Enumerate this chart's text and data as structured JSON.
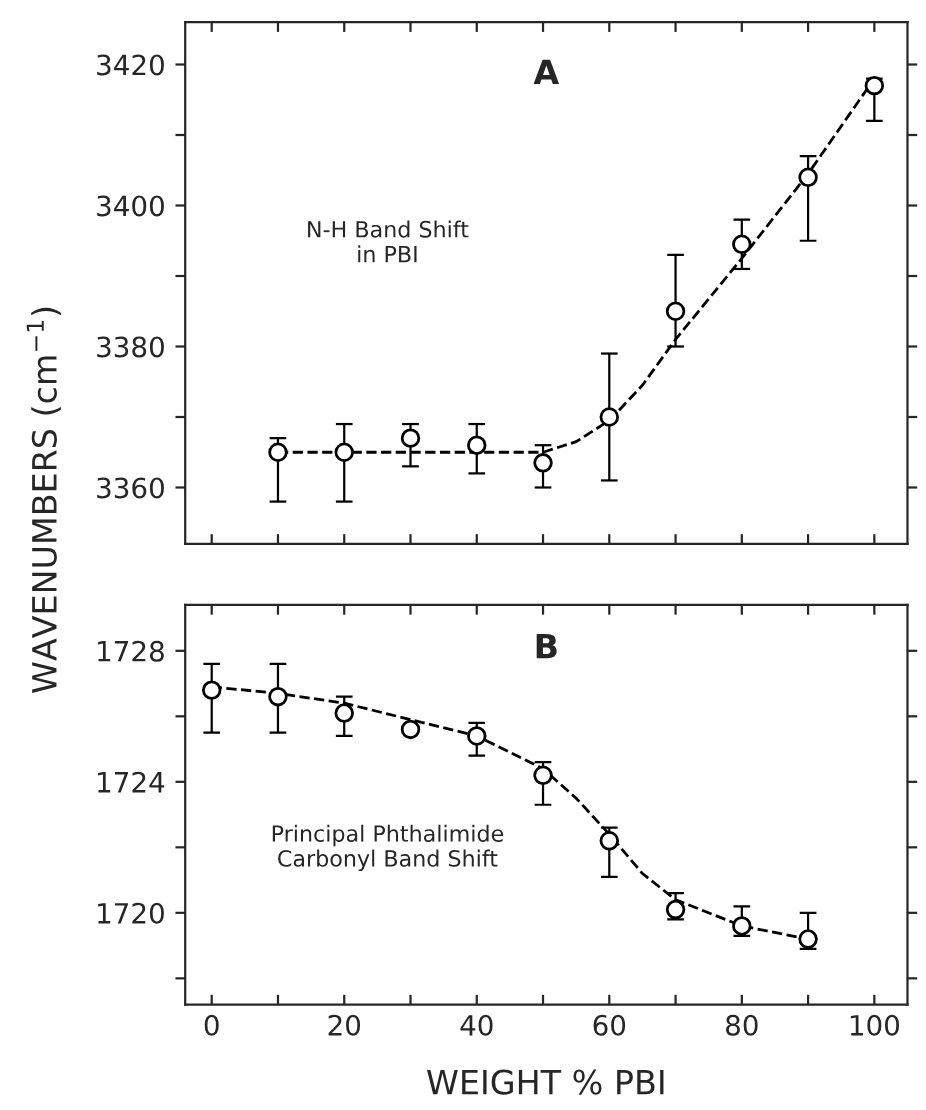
{
  "chart_data": [
    {
      "type": "scatter",
      "title": "A",
      "ylabel": "WAVENUMBERS (cm$^{−1}$)",
      "annotations": [
        "N-H Band Shift\nin PBI"
      ],
      "xlim": [
        -4,
        105
      ],
      "ylim": [
        3352,
        3426
      ],
      "xticks": [
        0,
        10,
        20,
        30,
        40,
        50,
        60,
        70,
        80,
        90,
        100
      ],
      "yticks": [
        3360,
        {
          "value": 3370,
          "label": null
        },
        3380,
        {
          "value": 3390,
          "label": null
        },
        3400,
        {
          "value": 3410,
          "label": null
        },
        3420
      ],
      "tick_labels": "y",
      "grid": false,
      "legend": false,
      "series": [
        {
          "color": "#000000",
          "marker": "circle",
          "x": [
            10,
            20,
            30,
            40,
            50,
            60,
            70,
            80,
            90,
            100
          ],
          "values": [
            3365,
            3365,
            3367,
            3366,
            3363.5,
            3370,
            3385,
            3394.5,
            3404,
            3417
          ],
          "errors": [
            [
              3358,
              3367
            ],
            [
              3358,
              3369
            ],
            [
              3363,
              3369
            ],
            [
              3362,
              3369
            ],
            [
              3360,
              3366
            ],
            [
              3361,
              3379
            ],
            [
              3380,
              3393
            ],
            [
              3391,
              3398
            ],
            [
              3395,
              3407
            ],
            [
              3412,
              3418
            ]
          ]
        },
        {
          "type": "line",
          "color": "#000000",
          "line_style": "dashed",
          "x": [
            10,
            20,
            30,
            40,
            50,
            55,
            60,
            65,
            70,
            80,
            90,
            100
          ],
          "values": [
            3365,
            3365,
            3365,
            3365,
            3365,
            3366.5,
            3369.5,
            3374.5,
            3381,
            3392.5,
            3404.5,
            3418
          ]
        }
      ]
    },
    {
      "type": "scatter",
      "title": "B",
      "xlabel": "WEIGHT % PBI",
      "annotations": [
        "Principal Phthalimide\nCarbonyl Band Shift"
      ],
      "xlim": [
        -4,
        105
      ],
      "ylim": [
        1717.2,
        1729.4
      ],
      "xticks": [
        0,
        {
          "value": 10,
          "label": null
        },
        20,
        {
          "value": 30,
          "label": null
        },
        40,
        {
          "value": 50,
          "label": null
        },
        60,
        {
          "value": 70,
          "label": null
        },
        80,
        {
          "value": 90,
          "label": null
        },
        100
      ],
      "yticks": [
        {
          "value": 1718,
          "label": null
        },
        1720,
        {
          "value": 1722,
          "label": null
        },
        1724,
        {
          "value": 1726,
          "label": null
        },
        1728
      ],
      "grid": false,
      "legend": false,
      "series": [
        {
          "color": "#000000",
          "marker": "circle",
          "x": [
            0,
            10,
            20,
            30,
            40,
            50,
            60,
            70,
            80,
            90
          ],
          "values": [
            1726.8,
            1726.6,
            1726.1,
            1725.6,
            1725.4,
            1724.2,
            1722.2,
            1720.1,
            1719.6,
            1719.2
          ],
          "errors": [
            [
              1725.5,
              1727.6
            ],
            [
              1725.5,
              1727.6
            ],
            [
              1725.4,
              1726.6
            ],
            null,
            [
              1724.8,
              1725.8
            ],
            [
              1723.3,
              1724.6
            ],
            [
              1721.1,
              1722.6
            ],
            [
              1719.8,
              1720.6
            ],
            [
              1719.3,
              1720.2
            ],
            [
              1718.9,
              1720.0
            ]
          ]
        },
        {
          "type": "line",
          "color": "#000000",
          "line_style": "dashed",
          "x": [
            0,
            10,
            20,
            30,
            40,
            50,
            55,
            60,
            65,
            70,
            80,
            90
          ],
          "values": [
            1726.9,
            1726.7,
            1726.4,
            1725.9,
            1725.4,
            1724.4,
            1723.5,
            1722.4,
            1721.2,
            1720.4,
            1719.6,
            1719.2
          ]
        }
      ]
    }
  ]
}
